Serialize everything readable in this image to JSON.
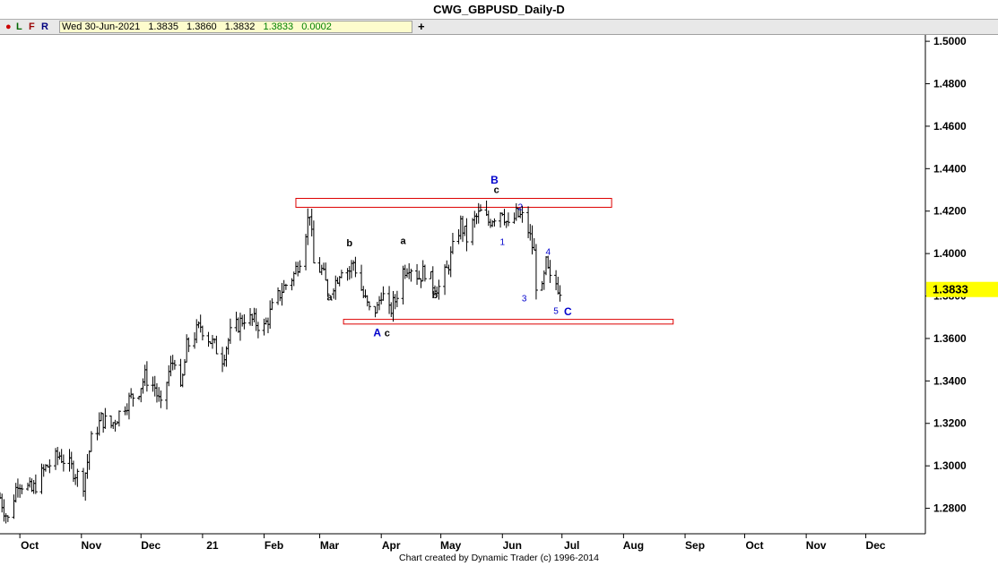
{
  "window": {
    "title": "CWG_GBPUSD_Daily-D"
  },
  "toolbar": {
    "indicators": [
      {
        "label": "●",
        "color": "#cc0000"
      },
      {
        "label": "L",
        "color": "#006600"
      },
      {
        "label": "F",
        "color": "#990000"
      },
      {
        "label": "R",
        "color": "#000080"
      }
    ],
    "add_icon": "plus-icon",
    "add_label": "+"
  },
  "quote": {
    "date": "Wed 30-Jun-2021",
    "open": "1.3835",
    "high": "1.3860",
    "low": "1.3832",
    "close": "1.3833",
    "change": "0.0002",
    "change_color": "#008000"
  },
  "footer": {
    "credit": "Chart created by Dynamic Trader  (c) 1996-2014"
  },
  "chart_data": {
    "type": "bar",
    "subtype": "ohlc",
    "title": "CWG_GBPUSD_Daily-D",
    "ylim": [
      1.268,
      1.503
    ],
    "y_ticks": [
      "1.5000",
      "1.4800",
      "1.4600",
      "1.4400",
      "1.4200",
      "1.4000",
      "1.3800",
      "1.3600",
      "1.3400",
      "1.3200",
      "1.3000",
      "1.2800"
    ],
    "x_ticks": [
      "Oct",
      "Nov",
      "Dec",
      "21",
      "Feb",
      "Mar",
      "Apr",
      "May",
      "Jun",
      "Jul",
      "Aug",
      "Sep",
      "Oct",
      "Nov",
      "Dec"
    ],
    "x_range": [
      "2020-09-21",
      "2021-12-31"
    ],
    "x_tick_dates": [
      "2020-10-01",
      "2020-11-01",
      "2020-12-01",
      "2021-01-01",
      "2021-02-01",
      "2021-03-01",
      "2021-04-01",
      "2021-05-01",
      "2021-06-01",
      "2021-07-01",
      "2021-08-01",
      "2021-09-01",
      "2021-10-01",
      "2021-11-01",
      "2021-12-01"
    ],
    "last_price": {
      "label": "1.3833",
      "value": 1.3833,
      "color": "#ffff00"
    },
    "grid": false,
    "bar_color": "#000000",
    "zones": [
      {
        "y_top": 1.426,
        "y_bottom": 1.4218,
        "x_start": "2021-02-17",
        "x_end": "2021-07-26",
        "color": "#dd0000"
      },
      {
        "y_top": 1.369,
        "y_bottom": 1.3668,
        "x_start": "2021-03-13",
        "x_end": "2021-08-26",
        "color": "#dd0000"
      }
    ],
    "annotations": [
      {
        "text": "B",
        "x": "2021-05-28",
        "y": 1.433,
        "color": "#0000cc",
        "bold": true,
        "size": 12
      },
      {
        "text": "c",
        "x": "2021-05-29",
        "y": 1.4285,
        "color": "#000000",
        "bold": true,
        "size": 11
      },
      {
        "text": "2",
        "x": "2021-06-10",
        "y": 1.4205,
        "color": "#0000cc",
        "bold": false,
        "size": 10
      },
      {
        "text": "1",
        "x": "2021-06-01",
        "y": 1.404,
        "color": "#0000cc",
        "bold": false,
        "size": 10
      },
      {
        "text": "4",
        "x": "2021-06-24",
        "y": 1.3995,
        "color": "#0000cc",
        "bold": false,
        "size": 10
      },
      {
        "text": "3",
        "x": "2021-06-12",
        "y": 1.3775,
        "color": "#0000cc",
        "bold": false,
        "size": 10
      },
      {
        "text": "5",
        "x": "2021-06-28",
        "y": 1.3715,
        "color": "#0000cc",
        "bold": false,
        "size": 10
      },
      {
        "text": "C",
        "x": "2021-07-04",
        "y": 1.371,
        "color": "#0000cc",
        "bold": true,
        "size": 12
      },
      {
        "text": "A",
        "x": "2021-03-30",
        "y": 1.361,
        "color": "#0000cc",
        "bold": true,
        "size": 12
      },
      {
        "text": "c",
        "x": "2021-04-04",
        "y": 1.361,
        "color": "#000000",
        "bold": true,
        "size": 11
      },
      {
        "text": "a",
        "x": "2021-03-06",
        "y": 1.378,
        "color": "#000000",
        "bold": true,
        "size": 11
      },
      {
        "text": "b",
        "x": "2021-03-16",
        "y": 1.4035,
        "color": "#000000",
        "bold": true,
        "size": 11
      },
      {
        "text": "a",
        "x": "2021-04-12",
        "y": 1.4045,
        "color": "#000000",
        "bold": true,
        "size": 11
      },
      {
        "text": "b",
        "x": "2021-04-28",
        "y": 1.379,
        "color": "#000000",
        "bold": true,
        "size": 11
      }
    ],
    "path": [
      [
        "2020-09-21",
        1.285
      ],
      [
        "2020-09-25",
        1.2745
      ],
      [
        "2020-09-30",
        1.293
      ],
      [
        "2020-10-07",
        1.288
      ],
      [
        "2020-10-14",
        1.299
      ],
      [
        "2020-10-21",
        1.305
      ],
      [
        "2020-10-27",
        1.299
      ],
      [
        "2020-11-02",
        1.292
      ],
      [
        "2020-11-06",
        1.312
      ],
      [
        "2020-11-11",
        1.322
      ],
      [
        "2020-11-16",
        1.319
      ],
      [
        "2020-11-23",
        1.329
      ],
      [
        "2020-11-30",
        1.336
      ],
      [
        "2020-12-03",
        1.342
      ],
      [
        "2020-12-08",
        1.337
      ],
      [
        "2020-12-11",
        1.327
      ],
      [
        "2020-12-15",
        1.344
      ],
      [
        "2020-12-18",
        1.351
      ],
      [
        "2020-12-21",
        1.334
      ],
      [
        "2020-12-24",
        1.356
      ],
      [
        "2020-12-31",
        1.366
      ],
      [
        "2021-01-05",
        1.359
      ],
      [
        "2021-01-11",
        1.351
      ],
      [
        "2021-01-15",
        1.362
      ],
      [
        "2021-01-22",
        1.37
      ],
      [
        "2021-01-27",
        1.368
      ],
      [
        "2021-02-01",
        1.365
      ],
      [
        "2021-02-05",
        1.374
      ],
      [
        "2021-02-10",
        1.383
      ],
      [
        "2021-02-16",
        1.39
      ],
      [
        "2021-02-19",
        1.398
      ],
      [
        "2021-02-24",
        1.42
      ],
      [
        "2021-02-26",
        1.395
      ],
      [
        "2021-03-02",
        1.392
      ],
      [
        "2021-03-05",
        1.383
      ],
      [
        "2021-03-09",
        1.387
      ],
      [
        "2021-03-12",
        1.394
      ],
      [
        "2021-03-16",
        1.392
      ],
      [
        "2021-03-18",
        1.396
      ],
      [
        "2021-03-23",
        1.38
      ],
      [
        "2021-03-26",
        1.373
      ],
      [
        "2021-03-30",
        1.374
      ],
      [
        "2021-04-01",
        1.382
      ],
      [
        "2021-04-05",
        1.372
      ],
      [
        "2021-04-08",
        1.378
      ],
      [
        "2021-04-12",
        1.392
      ],
      [
        "2021-04-15",
        1.395
      ],
      [
        "2021-04-20",
        1.389
      ],
      [
        "2021-04-23",
        1.392
      ],
      [
        "2021-04-27",
        1.386
      ],
      [
        "2021-04-30",
        1.384
      ],
      [
        "2021-05-04",
        1.392
      ],
      [
        "2021-05-07",
        1.402
      ],
      [
        "2021-05-11",
        1.414
      ],
      [
        "2021-05-14",
        1.407
      ],
      [
        "2021-05-18",
        1.416
      ],
      [
        "2021-05-21",
        1.419
      ],
      [
        "2021-05-25",
        1.415
      ],
      [
        "2021-05-28",
        1.418
      ],
      [
        "2021-06-01",
        1.421
      ],
      [
        "2021-06-04",
        1.412
      ],
      [
        "2021-06-08",
        1.418
      ],
      [
        "2021-06-11",
        1.417
      ],
      [
        "2021-06-14",
        1.411
      ],
      [
        "2021-06-17",
        1.4
      ],
      [
        "2021-06-18",
        1.386
      ],
      [
        "2021-06-21",
        1.382
      ],
      [
        "2021-06-23",
        1.395
      ],
      [
        "2021-06-25",
        1.387
      ],
      [
        "2021-06-28",
        1.386
      ],
      [
        "2021-06-30",
        1.3833
      ]
    ]
  }
}
